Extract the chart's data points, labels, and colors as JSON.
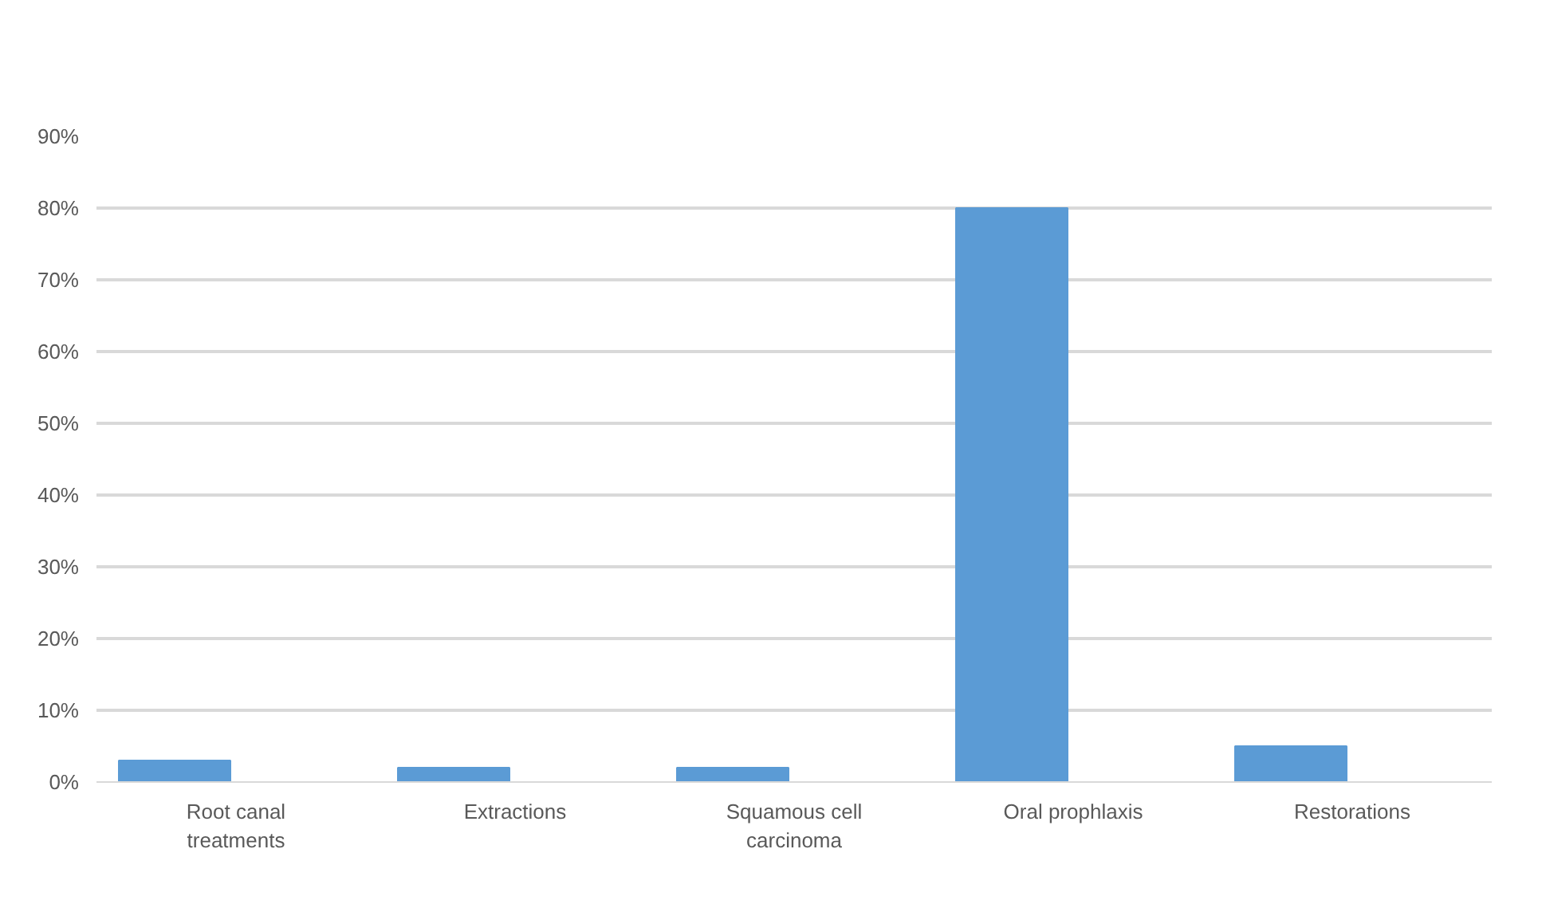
{
  "chart_data": {
    "type": "bar",
    "categories": [
      "Root canal treatments",
      "Extractions",
      "Squamous cell carcinoma",
      "Oral prophlaxis",
      "Restorations"
    ],
    "values": [
      3,
      2,
      2,
      80,
      5
    ],
    "color": "#5b9bd5",
    "ylim": [
      0,
      90
    ],
    "yticks": [
      {
        "value": 0,
        "label": "0%"
      },
      {
        "value": 10,
        "label": "10%"
      },
      {
        "value": 20,
        "label": "20%"
      },
      {
        "value": 30,
        "label": "30%"
      },
      {
        "value": 40,
        "label": "40%"
      },
      {
        "value": 50,
        "label": "50%"
      },
      {
        "value": 60,
        "label": "60%"
      },
      {
        "value": 70,
        "label": "70%"
      },
      {
        "value": 80,
        "label": "80%"
      },
      {
        "value": 90,
        "label": "90%"
      }
    ],
    "grid": "y"
  }
}
